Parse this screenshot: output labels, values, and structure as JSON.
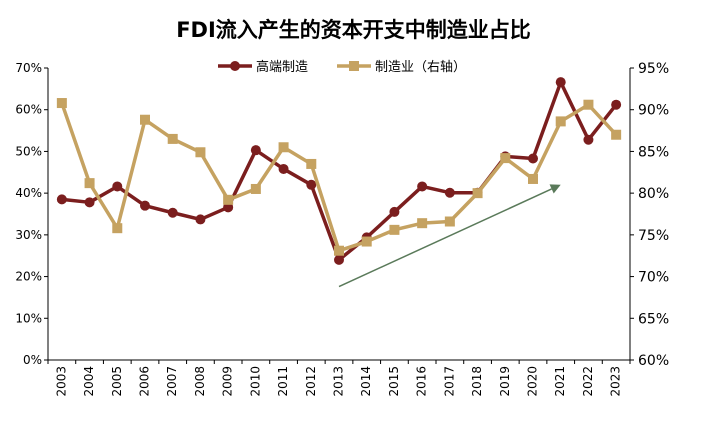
{
  "chart_data": {
    "type": "line",
    "title": "FDI流入产生的资本开支中制造业占比",
    "categories": [
      "2003",
      "2004",
      "2005",
      "2006",
      "2007",
      "2008",
      "2009",
      "2010",
      "2011",
      "2012",
      "2013",
      "2014",
      "2015",
      "2016",
      "2017",
      "2018",
      "2019",
      "2020",
      "2021",
      "2022",
      "2023"
    ],
    "series": [
      {
        "name": "高端制造",
        "axis": "left",
        "color": "#7b1e1e",
        "marker": "circle",
        "values": [
          38.5,
          37.8,
          41.6,
          37.0,
          35.3,
          33.7,
          36.6,
          50.3,
          45.8,
          42.0,
          24.0,
          29.4,
          35.5,
          41.6,
          40.1,
          40.1,
          48.8,
          48.3,
          66.6,
          52.8,
          61.2
        ]
      },
      {
        "name": "制造业（右轴）",
        "axis": "right",
        "color": "#c5a261",
        "marker": "square",
        "values": [
          90.8,
          81.2,
          75.8,
          88.8,
          86.5,
          84.9,
          79.2,
          80.5,
          85.5,
          83.5,
          73.1,
          74.2,
          75.6,
          76.4,
          76.6,
          80.0,
          84.2,
          81.7,
          88.6,
          90.6,
          87.0
        ]
      }
    ],
    "y_left": {
      "ylim": [
        0,
        70
      ],
      "ticks": [
        "0%",
        "10%",
        "20%",
        "30%",
        "40%",
        "50%",
        "60%",
        "70%"
      ]
    },
    "y_right": {
      "ylim": [
        60,
        95
      ],
      "ticks": [
        "60%",
        "65%",
        "70%",
        "75%",
        "80%",
        "85%",
        "90%",
        "95%"
      ]
    },
    "trend_arrow": {
      "color": "#5a7a5a",
      "from": [
        "2013",
        68.8
      ],
      "to": [
        "2021",
        81.0
      ],
      "axis": "right"
    },
    "legend": "top-center",
    "grid": false
  }
}
